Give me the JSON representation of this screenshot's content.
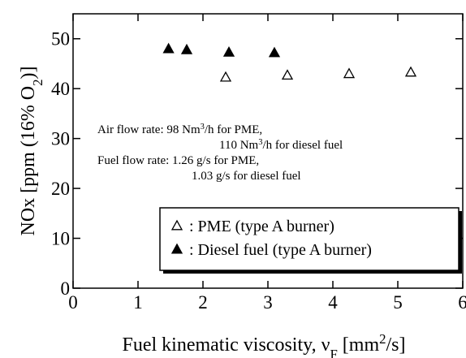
{
  "chart_data": {
    "type": "scatter",
    "xlabel": [
      "Fuel kinematic viscosity, ν",
      "F",
      " [mm",
      "2",
      "/s]"
    ],
    "ylabel": [
      "NOx [ppm (16% O",
      "2",
      ")]"
    ],
    "xlim": [
      0,
      6
    ],
    "xticks": [
      0,
      1,
      2,
      3,
      4,
      5,
      6
    ],
    "ylim": [
      0,
      55
    ],
    "yticks": [
      0,
      10,
      20,
      30,
      40,
      50
    ],
    "series": [
      {
        "name": ": PME (type A burner)",
        "color": "#000000",
        "marker": "triangle-open",
        "x": [
          2.35,
          3.3,
          4.25,
          5.2
        ],
        "values": [
          42.3,
          42.7,
          43.0,
          43.3
        ]
      },
      {
        "name": ": Diesel fuel (type A burner)",
        "color": "#000000",
        "marker": "triangle-filled",
        "x": [
          1.47,
          1.75,
          2.4,
          3.1
        ],
        "values": [
          48.0,
          47.8,
          47.3,
          47.2
        ]
      }
    ],
    "annotation": [
      [
        "Air flow rate:  98 Nm",
        "3",
        "/h for PME,"
      ],
      [
        "110 Nm",
        "3",
        "/h for diesel fuel"
      ],
      [
        "Fuel flow rate: 1.26 g/s for PME,"
      ],
      [
        "1.03 g/s for diesel fuel"
      ]
    ],
    "legend": "lower right"
  }
}
